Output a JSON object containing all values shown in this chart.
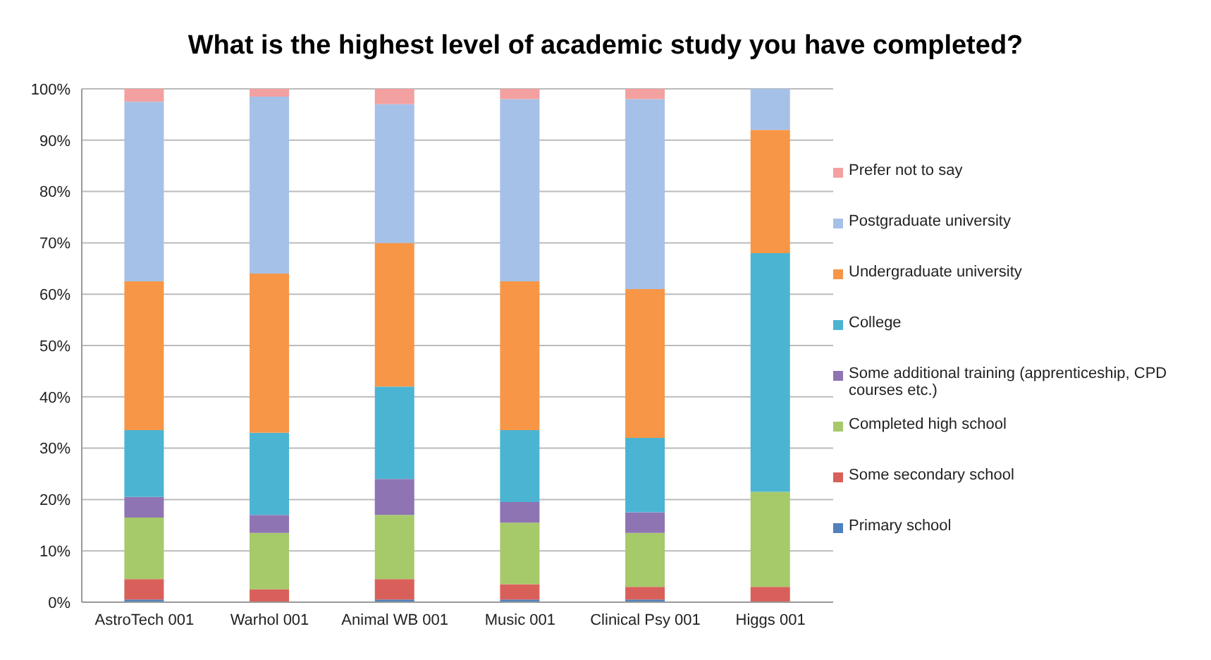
{
  "chart_data": {
    "type": "bar",
    "title": "What is the highest level of academic study you have completed?",
    "categories": [
      "AstroTech 001",
      "Warhol 001",
      "Animal WB 001",
      "Music 001",
      "Clinical Psy 001",
      "Higgs 001"
    ],
    "stacked": true,
    "ylim": [
      0,
      100
    ],
    "yticks": [
      {
        "value": 0,
        "label": "0%"
      },
      {
        "value": 10,
        "label": "10%"
      },
      {
        "value": 20,
        "label": "20%"
      },
      {
        "value": 30,
        "label": "30%"
      },
      {
        "value": 40,
        "label": "40%"
      },
      {
        "value": 50,
        "label": "50%"
      },
      {
        "value": 60,
        "label": "60%"
      },
      {
        "value": 70,
        "label": "70%"
      },
      {
        "value": 80,
        "label": "80%"
      },
      {
        "value": 90,
        "label": "90%"
      },
      {
        "value": 100,
        "label": "100%"
      }
    ],
    "grid": "y",
    "legend": "right",
    "series": [
      {
        "name": "Primary school",
        "color": "#4f81bd",
        "values": [
          0.5,
          null,
          0.5,
          0.5,
          0.5,
          0
        ]
      },
      {
        "name": "Some secondary school",
        "color": "#d9605a",
        "values": [
          4,
          2.5,
          4,
          3,
          2.5,
          3
        ]
      },
      {
        "name": "Completed high school",
        "color": "#a6c96a",
        "values": [
          12,
          11,
          12.5,
          12,
          10.5,
          18.5
        ]
      },
      {
        "name": "Some additional training (apprenticeship, CPD courses etc.)",
        "color": "#8f74b3",
        "values": [
          4,
          3.5,
          7,
          4,
          4,
          0
        ]
      },
      {
        "name": "College",
        "color": "#4bb4d2",
        "values": [
          13,
          16,
          18,
          14,
          14.5,
          46.5
        ]
      },
      {
        "name": "Undergraduate university",
        "color": "#f79646",
        "values": [
          29,
          31,
          28,
          29,
          29,
          24
        ]
      },
      {
        "name": "Postgraduate university",
        "color": "#a5c1e8",
        "values": [
          35,
          34.5,
          27,
          35.5,
          37,
          8
        ]
      },
      {
        "name": "Prefer not to say",
        "color": "#f2a0a0",
        "values": [
          2.5,
          1.5,
          3,
          2,
          2,
          0
        ]
      }
    ]
  }
}
